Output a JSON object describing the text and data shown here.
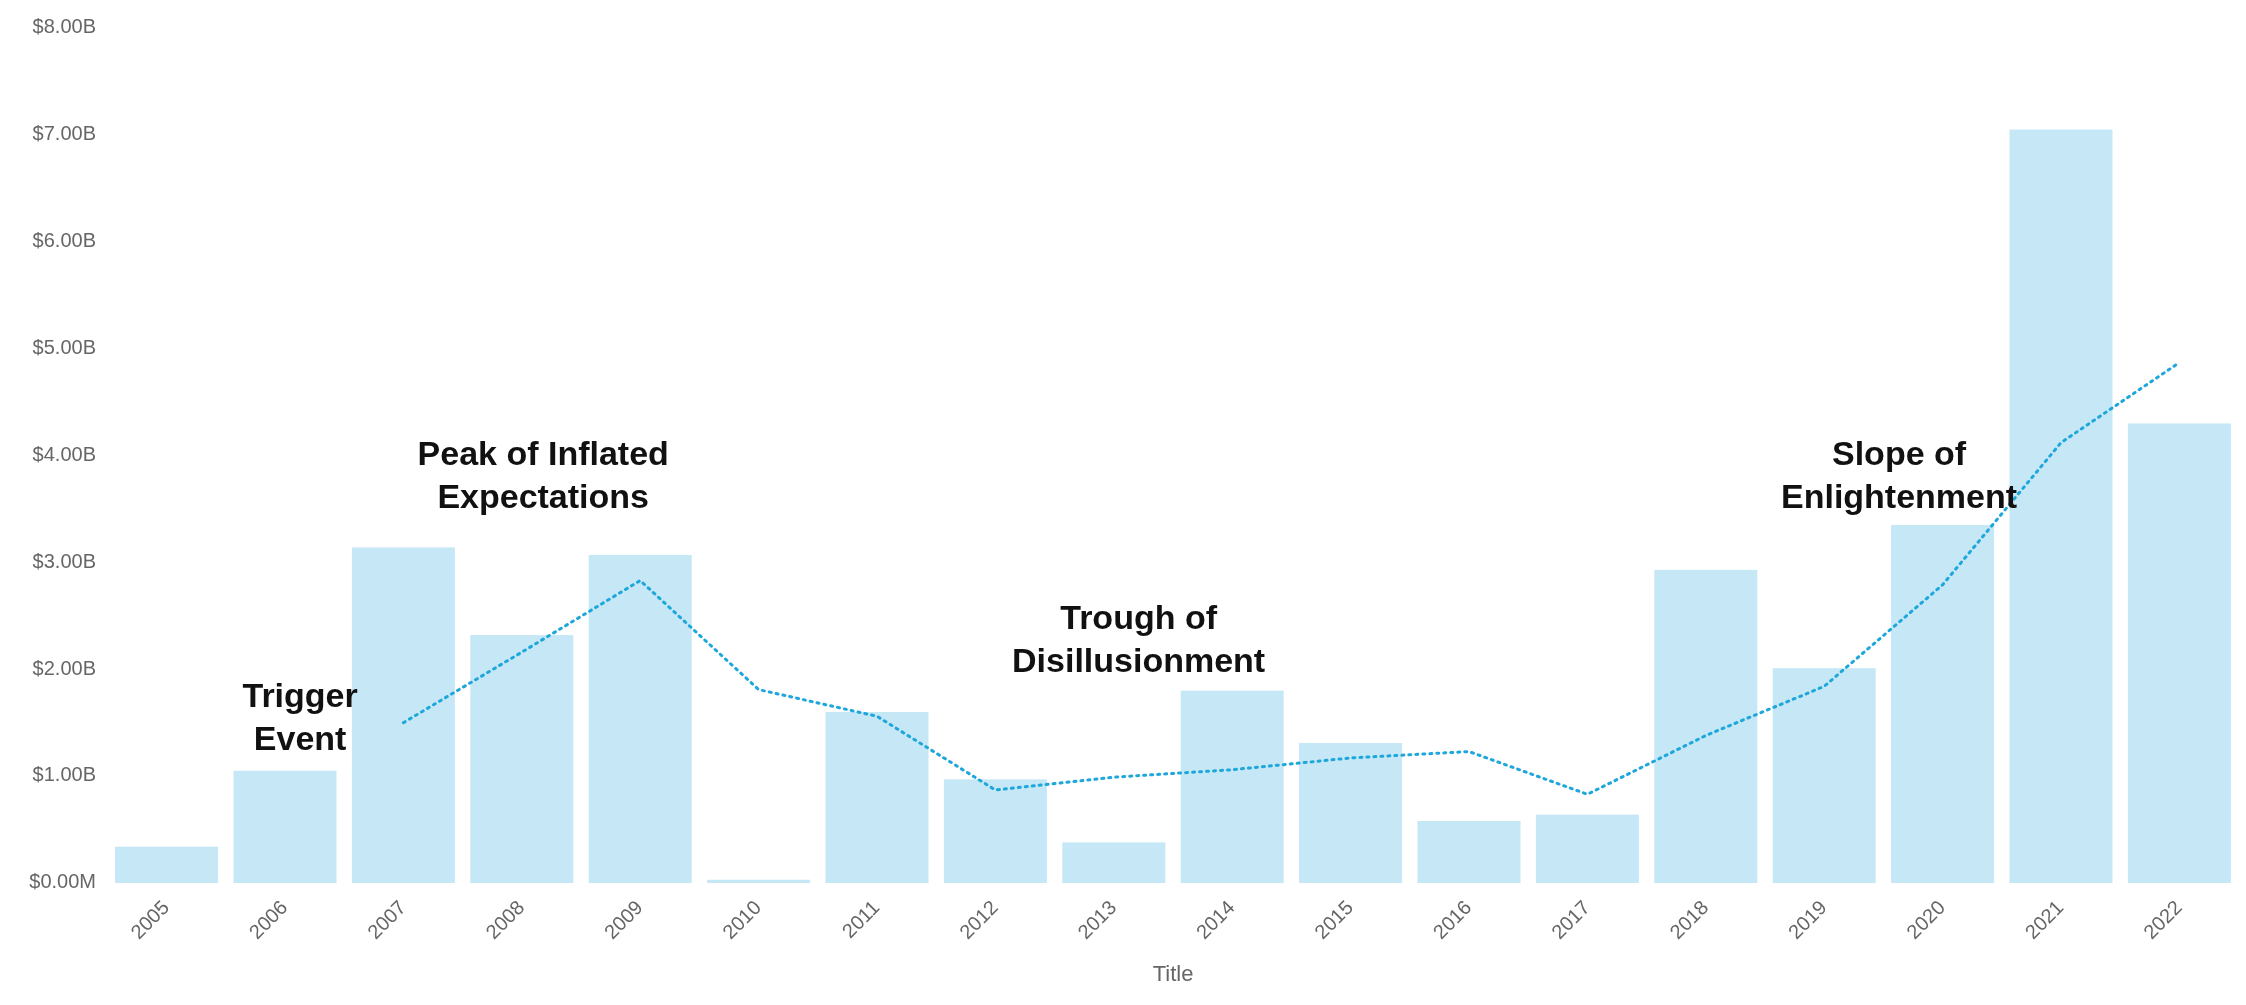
{
  "chart_data": {
    "type": "bar",
    "xlabel": "Title",
    "categories": [
      "2005",
      "2006",
      "2007",
      "2008",
      "2009",
      "2010",
      "2011",
      "2012",
      "2013",
      "2014",
      "2015",
      "2016",
      "2017",
      "2018",
      "2019",
      "2020",
      "2021",
      "2022"
    ],
    "series": [
      {
        "color": "#c6e8f6",
        "values": [
          0.34,
          1.05,
          3.14,
          2.32,
          3.07,
          0.03,
          1.6,
          0.97,
          0.38,
          1.8,
          1.31,
          0.58,
          0.64,
          2.93,
          2.01,
          3.35,
          7.05,
          4.3
        ]
      },
      {
        "type": "line",
        "color": "#1ea7db",
        "line_style": "dotted",
        "values": [
          null,
          null,
          1.5,
          2.16,
          2.83,
          1.81,
          1.56,
          0.87,
          0.99,
          1.06,
          1.17,
          1.23,
          0.83,
          1.38,
          1.84,
          2.79,
          4.12,
          4.87
        ]
      }
    ],
    "ylim": [
      0,
      8
    ],
    "yticks": [
      {
        "value": 0,
        "label": "$0.00M"
      },
      {
        "value": 1,
        "label": "$1.00B"
      },
      {
        "value": 2,
        "label": "$2.00B"
      },
      {
        "value": 3,
        "label": "$3.00B"
      },
      {
        "value": 4,
        "label": "$4.00B"
      },
      {
        "value": 5,
        "label": "$5.00B"
      },
      {
        "value": 6,
        "label": "$6.00B"
      },
      {
        "value": 7,
        "label": "$7.00B"
      },
      {
        "value": 8,
        "label": "$8.00B"
      }
    ],
    "grid": false,
    "annotations": [
      "Trigger\nEvent",
      "Peak of Inflated\nExpectations",
      "Trough of\nDisillusionment",
      "Slope of\nEnlightenment"
    ]
  }
}
